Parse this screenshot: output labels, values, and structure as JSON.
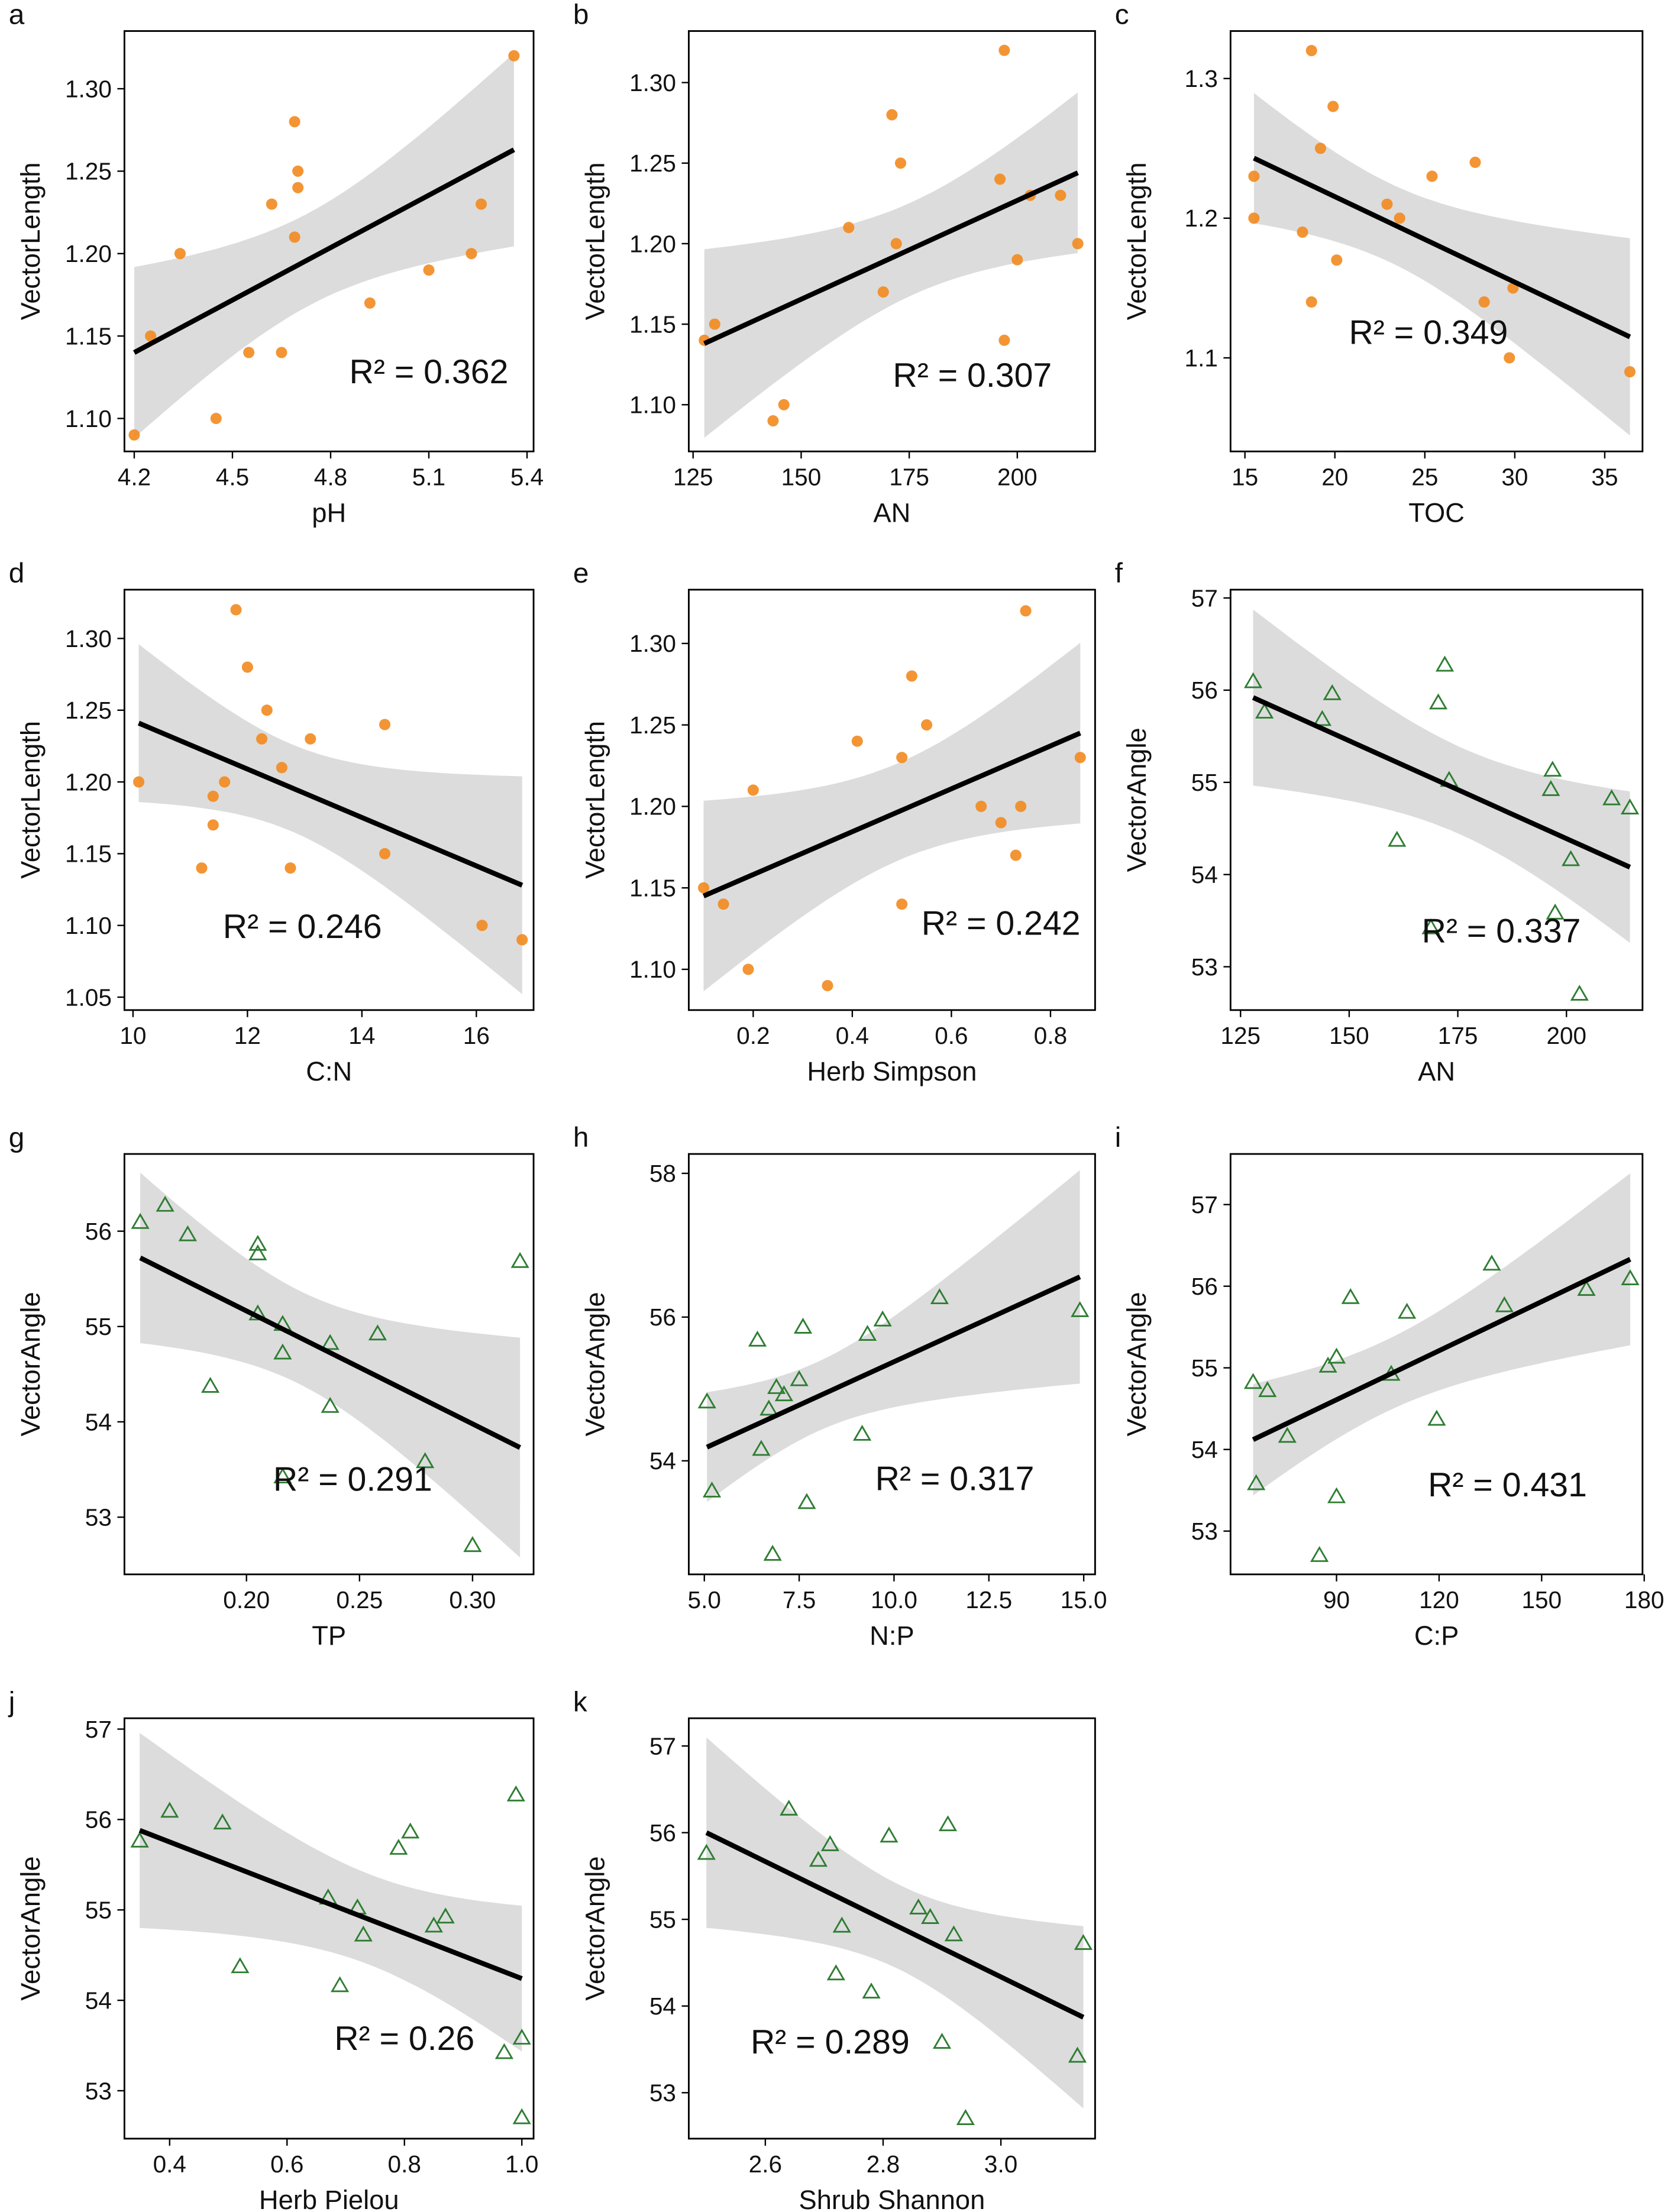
{
  "colors": {
    "length_points": "#f28a1e",
    "angle_points": "#2e7d32",
    "band": "#d6d6d6",
    "fit": "#000000"
  },
  "chart_data": [
    {
      "letter": "a",
      "type": "scatter",
      "marker": "circle",
      "xlabel": "pH",
      "ylabel": "VectorLength",
      "r2": "R² = 0.362",
      "r2_at": [
        5.1,
        1.129
      ],
      "xlim": [
        4.17,
        5.42
      ],
      "ylim": [
        1.08,
        1.335
      ],
      "xticks": [
        "4.2",
        "4.5",
        "4.8",
        "5.1",
        "5.4"
      ],
      "yticks": [
        "1.10",
        "1.15",
        "1.20",
        "1.25",
        "1.30"
      ],
      "x": [
        4.2,
        4.25,
        4.34,
        4.45,
        4.55,
        4.62,
        4.65,
        4.69,
        4.69,
        4.7,
        4.7,
        4.92,
        5.1,
        5.23,
        5.26,
        5.36
      ],
      "y": [
        1.09,
        1.15,
        1.2,
        1.1,
        1.14,
        1.23,
        1.14,
        1.28,
        1.21,
        1.25,
        1.24,
        1.17,
        1.19,
        1.2,
        1.23,
        1.32
      ],
      "fit": [
        [
          4.2,
          1.14
        ],
        [
          5.36,
          1.263
        ]
      ]
    },
    {
      "letter": "b",
      "type": "scatter",
      "marker": "circle",
      "xlabel": "AN",
      "ylabel": "VectorLength",
      "r2": "R² = 0.307",
      "r2_at": [
        189.6,
        1.119
      ],
      "xlim": [
        124,
        218
      ],
      "ylim": [
        1.071,
        1.332
      ],
      "xticks": [
        "125",
        "150",
        "175",
        "200"
      ],
      "yticks": [
        "1.10",
        "1.15",
        "1.20",
        "1.25",
        "1.30"
      ],
      "x": [
        127.6,
        130,
        143.5,
        146,
        161,
        169,
        171,
        172,
        173,
        197,
        196,
        197,
        200,
        203,
        210,
        214
      ],
      "y": [
        1.14,
        1.15,
        1.09,
        1.1,
        1.21,
        1.17,
        1.28,
        1.2,
        1.25,
        1.32,
        1.24,
        1.14,
        1.19,
        1.23,
        1.23,
        1.2
      ],
      "fit": [
        [
          127.6,
          1.138
        ],
        [
          214,
          1.244
        ]
      ]
    },
    {
      "letter": "c",
      "type": "scatter",
      "marker": "circle",
      "xlabel": "TOC",
      "ylabel": "VectorLength",
      "r2": "R² = 0.349",
      "r2_at": [
        25.2,
        1.119
      ],
      "xlim": [
        14.2,
        37.1
      ],
      "ylim": [
        1.033,
        1.334
      ],
      "xticks": [
        "15",
        "20",
        "25",
        "30",
        "35"
      ],
      "yticks": [
        "1.1",
        "1.2",
        "1.3"
      ],
      "x": [
        15.5,
        15.5,
        18.7,
        18.2,
        18.7,
        19.2,
        19.9,
        20.1,
        22.9,
        23.6,
        25.4,
        27.8,
        28.3,
        29.9,
        29.7,
        36.4
      ],
      "y": [
        1.23,
        1.2,
        1.32,
        1.19,
        1.14,
        1.25,
        1.28,
        1.17,
        1.21,
        1.2,
        1.23,
        1.24,
        1.14,
        1.15,
        1.1,
        1.09
      ],
      "fit": [
        [
          15.5,
          1.243
        ],
        [
          36.4,
          1.115
        ]
      ]
    },
    {
      "letter": "d",
      "type": "scatter",
      "marker": "circle",
      "xlabel": "C:N",
      "ylabel": "VectorLength",
      "r2": "R² = 0.246",
      "r2_at": [
        12.96,
        1.1
      ],
      "xlim": [
        9.85,
        17.0
      ],
      "ylim": [
        1.041,
        1.334
      ],
      "xticks": [
        "10",
        "12",
        "14",
        "16"
      ],
      "yticks": [
        "1.05",
        "1.10",
        "1.15",
        "1.20",
        "1.25",
        "1.30"
      ],
      "x": [
        10.1,
        11.2,
        11.4,
        11.4,
        11.6,
        11.8,
        12.0,
        12.34,
        12.25,
        12.6,
        12.75,
        13.1,
        14.4,
        14.4,
        16.1,
        16.8
      ],
      "y": [
        1.2,
        1.14,
        1.19,
        1.17,
        1.2,
        1.32,
        1.28,
        1.25,
        1.23,
        1.21,
        1.14,
        1.23,
        1.24,
        1.15,
        1.1,
        1.09
      ],
      "fit": [
        [
          10.1,
          1.241
        ],
        [
          16.8,
          1.128
        ]
      ]
    },
    {
      "letter": "e",
      "type": "scatter",
      "marker": "circle",
      "xlabel": "Herb Simpson",
      "ylabel": "VectorLength",
      "r2": "R² = 0.242",
      "r2_at": [
        0.7,
        1.129
      ],
      "xlim": [
        0.07,
        0.89
      ],
      "ylim": [
        1.075,
        1.333
      ],
      "xticks": [
        "0.2",
        "0.4",
        "0.6",
        "0.8"
      ],
      "yticks": [
        "1.10",
        "1.15",
        "1.20",
        "1.25",
        "1.30"
      ],
      "x": [
        0.1,
        0.14,
        0.2,
        0.19,
        0.35,
        0.41,
        0.5,
        0.52,
        0.55,
        0.5,
        0.66,
        0.7,
        0.74,
        0.73,
        0.75,
        0.86
      ],
      "y": [
        1.15,
        1.14,
        1.21,
        1.1,
        1.09,
        1.24,
        1.23,
        1.28,
        1.25,
        1.14,
        1.2,
        1.19,
        1.2,
        1.17,
        1.32,
        1.23
      ],
      "fit": [
        [
          0.1,
          1.145
        ],
        [
          0.86,
          1.245
        ]
      ]
    },
    {
      "letter": "f",
      "type": "scatter",
      "marker": "triangle",
      "xlabel": "AN",
      "ylabel": "VectorAngle",
      "r2": "R² = 0.337",
      "r2_at": [
        185,
        53.4
      ],
      "xlim": [
        122.7,
        217.5
      ],
      "ylim": [
        52.53,
        57.09
      ],
      "xticks": [
        "125",
        "150",
        "175",
        "200"
      ],
      "yticks": [
        "53",
        "54",
        "55",
        "56",
        "57"
      ],
      "x": [
        127.9,
        130.5,
        143.8,
        146.1,
        161,
        168.8,
        170.5,
        172,
        173,
        196.8,
        196.4,
        197.4,
        201,
        203,
        210.4,
        214.6
      ],
      "y": [
        56.1,
        55.77,
        55.69,
        55.97,
        54.38,
        53.43,
        55.87,
        56.28,
        55.03,
        55.14,
        54.93,
        53.59,
        54.17,
        52.71,
        54.83,
        54.73
      ],
      "fit": [
        [
          127.9,
          55.92
        ],
        [
          214.6,
          54.08
        ]
      ]
    },
    {
      "letter": "g",
      "type": "scatter",
      "marker": "triangle",
      "xlabel": "TP",
      "ylabel": "VectorAngle",
      "r2": "R² = 0.291",
      "r2_at": [
        0.247,
        53.41
      ],
      "xlim": [
        0.146,
        0.327
      ],
      "ylim": [
        52.4,
        56.81
      ],
      "xticks": [
        "0.20",
        "0.25",
        "0.30"
      ],
      "yticks": [
        "53",
        "54",
        "55",
        "56"
      ],
      "x": [
        0.153,
        0.164,
        0.174,
        0.205,
        0.205,
        0.205,
        0.216,
        0.216,
        0.237,
        0.258,
        0.184,
        0.237,
        0.216,
        0.279,
        0.3,
        0.321
      ],
      "y": [
        56.1,
        56.28,
        55.97,
        55.87,
        55.77,
        55.14,
        55.03,
        54.73,
        54.83,
        54.93,
        54.38,
        54.17,
        53.43,
        53.59,
        52.71,
        55.69
      ],
      "fit": [
        [
          0.153,
          55.72
        ],
        [
          0.321,
          53.73
        ]
      ]
    },
    {
      "letter": "h",
      "type": "scatter",
      "marker": "triangle",
      "xlabel": "N:P",
      "ylabel": "VectorAngle",
      "r2": "R² = 0.317",
      "r2_at": [
        11.6,
        53.77
      ],
      "xlim": [
        4.59,
        15.3
      ],
      "ylim": [
        52.42,
        58.27
      ],
      "xticks": [
        "5.0",
        "7.5",
        "10.0",
        "12.5",
        "15.0"
      ],
      "yticks": [
        "54",
        "56",
        "58"
      ],
      "x": [
        5.07,
        5.2,
        6.4,
        6.5,
        6.7,
        6.9,
        7.1,
        7.5,
        7.6,
        7.7,
        6.8,
        9.16,
        9.3,
        9.7,
        11.2,
        14.9
      ],
      "y": [
        54.83,
        53.59,
        55.69,
        54.17,
        54.73,
        55.03,
        54.93,
        55.14,
        55.87,
        53.43,
        52.71,
        54.38,
        55.77,
        55.97,
        56.28,
        56.1
      ],
      "fit": [
        [
          5.07,
          54.19
        ],
        [
          14.9,
          56.56
        ]
      ]
    },
    {
      "letter": "i",
      "type": "scatter",
      "marker": "triangle",
      "xlabel": "C:P",
      "ylabel": "VectorAngle",
      "r2": "R² = 0.431",
      "r2_at": [
        140,
        53.58
      ],
      "xlim": [
        59,
        179.5
      ],
      "ylim": [
        52.47,
        57.62
      ],
      "xticks": [
        "90",
        "120",
        "150",
        "180"
      ],
      "yticks": [
        "53",
        "54",
        "55",
        "56",
        "57"
      ],
      "x": [
        65.6,
        69.8,
        66.5,
        75.6,
        85,
        87.5,
        90,
        90,
        94.1,
        106,
        110.6,
        119.3,
        135.4,
        139.1,
        163.1,
        175.9
      ],
      "y": [
        54.83,
        54.73,
        53.59,
        54.17,
        52.71,
        55.03,
        55.14,
        53.43,
        55.87,
        54.93,
        55.69,
        54.38,
        56.28,
        55.77,
        55.97,
        56.1
      ],
      "fit": [
        [
          65.6,
          54.12
        ],
        [
          175.9,
          56.33
        ]
      ]
    },
    {
      "letter": "j",
      "type": "scatter",
      "marker": "triangle",
      "xlabel": "Herb Pielou",
      "ylabel": "VectorAngle",
      "r2": "R² = 0.26",
      "r2_at": [
        0.8,
        53.59
      ],
      "xlim": [
        0.323,
        1.02
      ],
      "ylim": [
        52.47,
        57.12
      ],
      "xticks": [
        "0.4",
        "0.6",
        "0.8",
        "1.0"
      ],
      "yticks": [
        "53",
        "54",
        "55",
        "56",
        "57"
      ],
      "x": [
        0.349,
        0.4,
        0.49,
        0.52,
        0.67,
        0.69,
        0.72,
        0.73,
        0.79,
        0.81,
        0.85,
        0.87,
        0.97,
        0.99,
        1.0,
        1.0
      ],
      "y": [
        55.77,
        56.1,
        55.97,
        54.38,
        55.14,
        54.17,
        55.03,
        54.73,
        55.69,
        55.87,
        54.83,
        54.93,
        53.43,
        56.28,
        53.59,
        52.71
      ],
      "fit": [
        [
          0.349,
          55.88
        ],
        [
          1.0,
          54.24
        ]
      ]
    },
    {
      "letter": "k",
      "type": "scatter",
      "marker": "triangle",
      "xlabel": "Shrub Shannon",
      "ylabel": "VectorAngle",
      "r2": "R² = 0.289",
      "r2_at": [
        2.71,
        53.6
      ],
      "xlim": [
        2.47,
        3.16
      ],
      "ylim": [
        52.47,
        57.32
      ],
      "xticks": [
        "2.6",
        "2.8",
        "3.0"
      ],
      "yticks": [
        "53",
        "54",
        "55",
        "56",
        "57"
      ],
      "x": [
        2.5,
        2.64,
        2.69,
        2.71,
        2.73,
        2.72,
        2.78,
        2.81,
        2.86,
        2.88,
        2.9,
        2.91,
        2.92,
        2.94,
        3.14,
        3.13
      ],
      "y": [
        55.77,
        56.28,
        55.69,
        55.87,
        54.93,
        54.38,
        54.17,
        55.97,
        55.14,
        55.03,
        53.59,
        56.1,
        54.83,
        52.71,
        54.73,
        53.43
      ],
      "fit": [
        [
          2.5,
          56.0
        ],
        [
          3.14,
          53.87
        ]
      ]
    }
  ]
}
